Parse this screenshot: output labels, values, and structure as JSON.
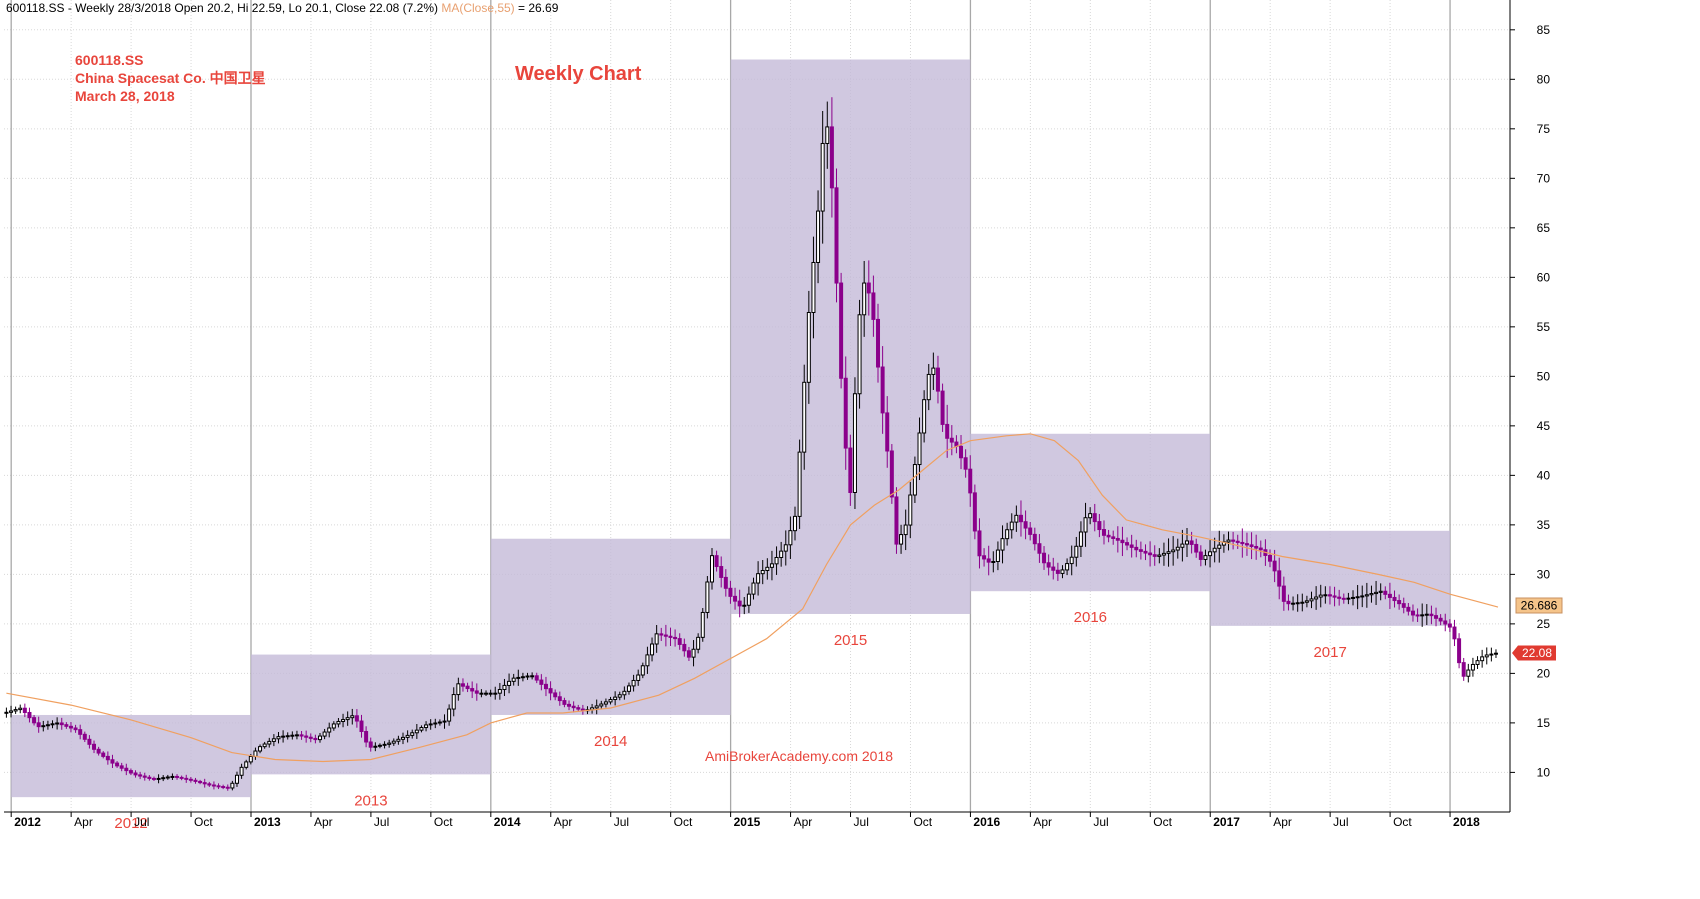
{
  "header": {
    "symbol": "600118.SS",
    "period": "Weekly",
    "date": "28/3/2018",
    "open_label": "Open",
    "open": "20.2",
    "high_label": "Hi",
    "high": "22.59",
    "low_label": "Lo",
    "low": "20.1",
    "close_label": "Close",
    "close": "22.08",
    "change": "(7.2%)",
    "ma_label": "MA(Close,55)",
    "ma_value": "26.69"
  },
  "annotation": {
    "symbol": "600118.SS",
    "company": "China Spacesat Co. 中国卫星",
    "date": "March 28, 2018"
  },
  "colors": {
    "candle": "#000000",
    "down_candle": "#8b008b",
    "ma_line": "#f0a060",
    "year_box": "#c4bad8",
    "label_red": "#e8453c",
    "grid": "#d8d8d8",
    "year_line": "#a8a8a8"
  },
  "chart_data": {
    "type": "candlestick",
    "title": "Weekly Chart",
    "watermark": "AmiBrokerAcademy.com  2018",
    "ylim": [
      6,
      87
    ],
    "yticks": [
      10,
      15,
      20,
      25,
      30,
      35,
      40,
      45,
      50,
      55,
      60,
      65,
      70,
      75,
      80,
      85
    ],
    "x_start": 2011.97,
    "x_end": 2018.25,
    "x_ticks": [
      {
        "t": 2012.0,
        "label": "2012",
        "year": true
      },
      {
        "t": 2012.25,
        "label": "Apr"
      },
      {
        "t": 2012.5,
        "label": "Jul"
      },
      {
        "t": 2012.75,
        "label": "Oct"
      },
      {
        "t": 2013.0,
        "label": "2013",
        "year": true
      },
      {
        "t": 2013.25,
        "label": "Apr"
      },
      {
        "t": 2013.5,
        "label": "Jul"
      },
      {
        "t": 2013.75,
        "label": "Oct"
      },
      {
        "t": 2014.0,
        "label": "2014",
        "year": true
      },
      {
        "t": 2014.25,
        "label": "Apr"
      },
      {
        "t": 2014.5,
        "label": "Jul"
      },
      {
        "t": 2014.75,
        "label": "Oct"
      },
      {
        "t": 2015.0,
        "label": "2015",
        "year": true
      },
      {
        "t": 2015.25,
        "label": "Apr"
      },
      {
        "t": 2015.5,
        "label": "Jul"
      },
      {
        "t": 2015.75,
        "label": "Oct"
      },
      {
        "t": 2016.0,
        "label": "2016",
        "year": true
      },
      {
        "t": 2016.25,
        "label": "Apr"
      },
      {
        "t": 2016.5,
        "label": "Jul"
      },
      {
        "t": 2016.75,
        "label": "Oct"
      },
      {
        "t": 2017.0,
        "label": "2017",
        "year": true
      },
      {
        "t": 2017.25,
        "label": "Apr"
      },
      {
        "t": 2017.5,
        "label": "Jul"
      },
      {
        "t": 2017.75,
        "label": "Oct"
      },
      {
        "t": 2018.0,
        "label": "2018",
        "year": true
      }
    ],
    "year_ranges": [
      {
        "label": "2012",
        "start": 2012.0,
        "end": 2013.0,
        "low": 7.5,
        "high": 15.8
      },
      {
        "label": "2013",
        "start": 2013.0,
        "end": 2014.0,
        "low": 9.8,
        "high": 21.9
      },
      {
        "label": "2014",
        "start": 2014.0,
        "end": 2015.0,
        "low": 15.8,
        "high": 33.6
      },
      {
        "label": "2015",
        "start": 2015.0,
        "end": 2016.0,
        "low": 26.0,
        "high": 82.0
      },
      {
        "label": "2016",
        "start": 2016.0,
        "end": 2017.0,
        "low": 28.3,
        "high": 44.2
      },
      {
        "label": "2017",
        "start": 2017.0,
        "end": 2018.0,
        "low": 24.8,
        "high": 34.4
      }
    ],
    "series_price": [
      [
        2011.98,
        16.0
      ],
      [
        2012.05,
        16.5
      ],
      [
        2012.12,
        14.6
      ],
      [
        2012.2,
        15.0
      ],
      [
        2012.28,
        14.3
      ],
      [
        2012.36,
        12.2
      ],
      [
        2012.44,
        10.8
      ],
      [
        2012.52,
        9.8
      ],
      [
        2012.6,
        9.3
      ],
      [
        2012.68,
        9.6
      ],
      [
        2012.76,
        9.2
      ],
      [
        2012.84,
        8.7
      ],
      [
        2012.92,
        8.4
      ],
      [
        2012.97,
        10.5
      ],
      [
        2013.04,
        12.5
      ],
      [
        2013.12,
        13.6
      ],
      [
        2013.2,
        13.8
      ],
      [
        2013.28,
        13.3
      ],
      [
        2013.36,
        15.0
      ],
      [
        2013.44,
        15.8
      ],
      [
        2013.5,
        12.5
      ],
      [
        2013.58,
        12.9
      ],
      [
        2013.66,
        13.7
      ],
      [
        2013.74,
        14.8
      ],
      [
        2013.82,
        15.2
      ],
      [
        2013.87,
        19.0
      ],
      [
        2013.95,
        18.0
      ],
      [
        2014.03,
        18.0
      ],
      [
        2014.1,
        19.5
      ],
      [
        2014.18,
        19.8
      ],
      [
        2014.26,
        18.0
      ],
      [
        2014.32,
        16.8
      ],
      [
        2014.4,
        16.2
      ],
      [
        2014.48,
        17.0
      ],
      [
        2014.56,
        18.0
      ],
      [
        2014.63,
        20.0
      ],
      [
        2014.7,
        24.0
      ],
      [
        2014.78,
        23.5
      ],
      [
        2014.84,
        21.5
      ],
      [
        2014.88,
        24.0
      ],
      [
        2014.93,
        32.0
      ],
      [
        2015.0,
        28.0
      ],
      [
        2015.06,
        26.5
      ],
      [
        2015.12,
        30.0
      ],
      [
        2015.18,
        31.0
      ],
      [
        2015.24,
        33.0
      ],
      [
        2015.28,
        36.0
      ],
      [
        2015.31,
        47.0
      ],
      [
        2015.34,
        58.0
      ],
      [
        2015.37,
        65.0
      ],
      [
        2015.39,
        73.0
      ],
      [
        2015.41,
        76.0
      ],
      [
        2015.43,
        70.0
      ],
      [
        2015.45,
        60.0
      ],
      [
        2015.48,
        45.0
      ],
      [
        2015.51,
        38.0
      ],
      [
        2015.54,
        55.0
      ],
      [
        2015.57,
        60.0
      ],
      [
        2015.6,
        57.0
      ],
      [
        2015.64,
        47.0
      ],
      [
        2015.67,
        41.0
      ],
      [
        2015.7,
        33.0
      ],
      [
        2015.74,
        35.0
      ],
      [
        2015.79,
        43.0
      ],
      [
        2015.83,
        50.0
      ],
      [
        2015.86,
        51.0
      ],
      [
        2015.9,
        44.0
      ],
      [
        2015.95,
        43.0
      ],
      [
        2016.0,
        40.0
      ],
      [
        2016.04,
        32.0
      ],
      [
        2016.1,
        31.0
      ],
      [
        2016.15,
        34.0
      ],
      [
        2016.2,
        36.0
      ],
      [
        2016.26,
        34.0
      ],
      [
        2016.32,
        31.0
      ],
      [
        2016.38,
        30.0
      ],
      [
        2016.44,
        32.0
      ],
      [
        2016.5,
        36.5
      ],
      [
        2016.56,
        34.0
      ],
      [
        2016.62,
        33.5
      ],
      [
        2016.7,
        32.5
      ],
      [
        2016.78,
        31.8
      ],
      [
        2016.86,
        32.5
      ],
      [
        2016.92,
        33.5
      ],
      [
        2016.97,
        31.5
      ],
      [
        2017.02,
        32.5
      ],
      [
        2017.08,
        33.5
      ],
      [
        2017.16,
        33.0
      ],
      [
        2017.22,
        32.5
      ],
      [
        2017.27,
        31.0
      ],
      [
        2017.32,
        27.0
      ],
      [
        2017.4,
        27.2
      ],
      [
        2017.48,
        28.0
      ],
      [
        2017.56,
        27.5
      ],
      [
        2017.64,
        27.8
      ],
      [
        2017.72,
        28.3
      ],
      [
        2017.8,
        27.0
      ],
      [
        2017.86,
        25.8
      ],
      [
        2017.92,
        26.0
      ],
      [
        2017.97,
        25.3
      ],
      [
        2018.02,
        24.5
      ],
      [
        2018.06,
        19.5
      ],
      [
        2018.1,
        20.8
      ],
      [
        2018.15,
        21.8
      ],
      [
        2018.21,
        22.08
      ]
    ],
    "series_ma": [
      [
        2011.98,
        18.0
      ],
      [
        2012.25,
        16.8
      ],
      [
        2012.5,
        15.3
      ],
      [
        2012.75,
        13.5
      ],
      [
        2012.92,
        12.0
      ],
      [
        2013.1,
        11.3
      ],
      [
        2013.3,
        11.1
      ],
      [
        2013.5,
        11.3
      ],
      [
        2013.7,
        12.5
      ],
      [
        2013.9,
        13.8
      ],
      [
        2014.0,
        15.0
      ],
      [
        2014.15,
        16.0
      ],
      [
        2014.3,
        16.0
      ],
      [
        2014.5,
        16.5
      ],
      [
        2014.7,
        17.8
      ],
      [
        2014.85,
        19.5
      ],
      [
        2015.0,
        21.5
      ],
      [
        2015.15,
        23.5
      ],
      [
        2015.3,
        26.5
      ],
      [
        2015.4,
        31.0
      ],
      [
        2015.5,
        35.0
      ],
      [
        2015.6,
        37.0
      ],
      [
        2015.7,
        38.5
      ],
      [
        2015.8,
        40.5
      ],
      [
        2015.9,
        42.5
      ],
      [
        2016.0,
        43.5
      ],
      [
        2016.15,
        44.0
      ],
      [
        2016.25,
        44.2
      ],
      [
        2016.35,
        43.5
      ],
      [
        2016.45,
        41.5
      ],
      [
        2016.55,
        38.0
      ],
      [
        2016.65,
        35.5
      ],
      [
        2016.8,
        34.5
      ],
      [
        2016.95,
        33.8
      ],
      [
        2017.1,
        33.0
      ],
      [
        2017.3,
        31.8
      ],
      [
        2017.5,
        31.0
      ],
      [
        2017.7,
        30.0
      ],
      [
        2017.85,
        29.2
      ],
      [
        2018.0,
        28.0
      ],
      [
        2018.2,
        26.69
      ]
    ]
  },
  "labels": {
    "ma_tag": "26.686",
    "close_tag": "22.08"
  }
}
